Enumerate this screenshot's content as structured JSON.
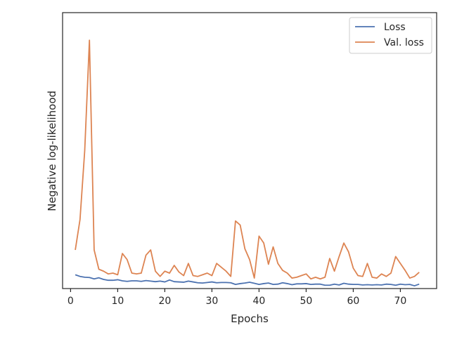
{
  "chart_data": {
    "type": "line",
    "title": "",
    "xlabel": "Epochs",
    "ylabel": "Negative log-likelihood",
    "xlim": [
      -1.7,
      77.7
    ],
    "ylim": [
      0,
      100
    ],
    "xticks": [
      0,
      10,
      20,
      30,
      40,
      50,
      60,
      70
    ],
    "grid": false,
    "legend": "upper right",
    "x": [
      1,
      2,
      3,
      4,
      5,
      6,
      7,
      8,
      9,
      10,
      11,
      12,
      13,
      14,
      15,
      16,
      17,
      18,
      19,
      20,
      21,
      22,
      23,
      24,
      25,
      26,
      27,
      28,
      29,
      30,
      31,
      32,
      33,
      34,
      35,
      36,
      37,
      38,
      39,
      40,
      41,
      42,
      43,
      44,
      45,
      46,
      47,
      48,
      49,
      50,
      51,
      52,
      53,
      54,
      55,
      56,
      57,
      58,
      59,
      60,
      61,
      62,
      63,
      64,
      65,
      66,
      67,
      68,
      69,
      70,
      71,
      72,
      73,
      74
    ],
    "series": [
      {
        "name": "Loss",
        "color": "#4c72b0",
        "values": [
          5.0,
          4.4,
          4.1,
          4.0,
          3.5,
          3.9,
          3.3,
          3.0,
          3.0,
          3.2,
          2.8,
          2.6,
          2.8,
          2.8,
          2.6,
          2.9,
          2.7,
          2.5,
          2.7,
          2.4,
          3.1,
          2.5,
          2.4,
          2.3,
          2.7,
          2.4,
          2.1,
          2.0,
          2.2,
          2.4,
          2.1,
          2.2,
          2.2,
          2.1,
          1.5,
          1.8,
          2.0,
          2.3,
          1.9,
          1.5,
          1.8,
          2.0,
          1.5,
          1.6,
          2.1,
          1.8,
          1.4,
          1.7,
          1.7,
          1.8,
          1.5,
          1.6,
          1.6,
          1.2,
          1.2,
          1.6,
          1.3,
          1.9,
          1.6,
          1.5,
          1.5,
          1.3,
          1.4,
          1.3,
          1.4,
          1.3,
          1.6,
          1.5,
          1.2,
          1.6,
          1.4,
          1.5,
          1.0,
          1.6
        ]
      },
      {
        "name": "Val. loss",
        "color": "#dd8452",
        "values": [
          14,
          25,
          50,
          90,
          14,
          7,
          6.3,
          5.3,
          5.6,
          5.0,
          12.7,
          10.5,
          5.6,
          5.3,
          5.6,
          12.1,
          14,
          6.3,
          4.4,
          6.3,
          5.6,
          8.4,
          6.0,
          4.7,
          9.1,
          4.7,
          4.4,
          5.0,
          5.6,
          4.7,
          9.1,
          7.7,
          6.3,
          4.4,
          24.5,
          23,
          14.4,
          10.5,
          3.8,
          19,
          16.5,
          8.8,
          15.1,
          9.1,
          6.6,
          5.6,
          3.8,
          4.1,
          4.7,
          5.3,
          3.5,
          4.1,
          3.5,
          4.1,
          10.9,
          6.3,
          11.6,
          16.5,
          13.3,
          7.4,
          4.7,
          4.4,
          9.1,
          4.1,
          3.8,
          5.3,
          4.4,
          5.6,
          11.6,
          9.1,
          6.6,
          3.8,
          4.4,
          5.9
        ]
      }
    ]
  }
}
